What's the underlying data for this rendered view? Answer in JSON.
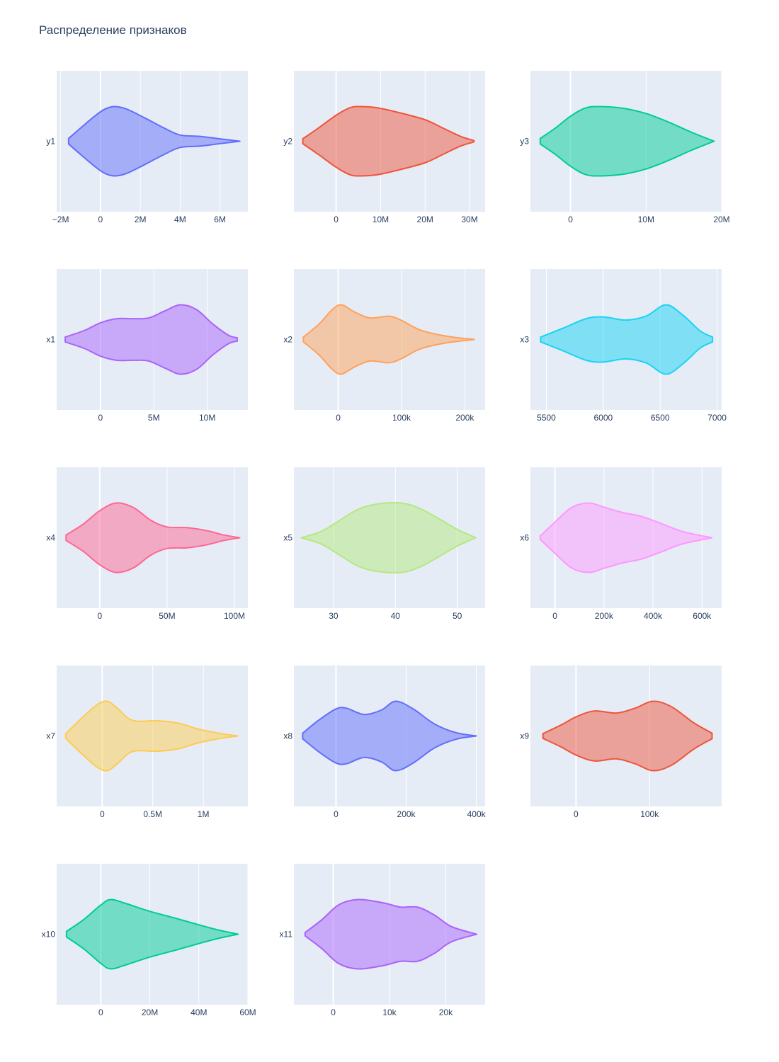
{
  "chart_data": {
    "type": "violin",
    "title": "Распределение признаков",
    "subplots": [
      {
        "label": "y1",
        "color": "#636efa",
        "ticks": [
          {
            "v": -2,
            "t": "−2M"
          },
          {
            "v": 0,
            "t": "0"
          },
          {
            "v": 2,
            "t": "2M"
          },
          {
            "v": 4,
            "t": "4M"
          },
          {
            "v": 6,
            "t": "6M"
          }
        ],
        "xrange": [
          -2.2,
          7.4
        ],
        "profile": [
          [
            -1.6,
            0.08
          ],
          [
            -1.0,
            0.38
          ],
          [
            -0.3,
            0.72
          ],
          [
            0.2,
            0.92
          ],
          [
            0.7,
            1.0
          ],
          [
            1.3,
            0.93
          ],
          [
            2.2,
            0.68
          ],
          [
            3.2,
            0.38
          ],
          [
            4.0,
            0.18
          ],
          [
            5.0,
            0.14
          ],
          [
            6.0,
            0.07
          ],
          [
            7.0,
            0.0
          ]
        ]
      },
      {
        "label": "y2",
        "color": "#EF553B",
        "ticks": [
          {
            "v": 0,
            "t": "0"
          },
          {
            "v": 10,
            "t": "10M"
          },
          {
            "v": 20,
            "t": "20M"
          },
          {
            "v": 30,
            "t": "30M"
          }
        ],
        "xrange": [
          -9.5,
          33.5
        ],
        "profile": [
          [
            -7.5,
            0.07
          ],
          [
            -4,
            0.38
          ],
          [
            0,
            0.75
          ],
          [
            3,
            0.96
          ],
          [
            5,
            1.0
          ],
          [
            9,
            0.97
          ],
          [
            14,
            0.83
          ],
          [
            20,
            0.62
          ],
          [
            24,
            0.38
          ],
          [
            28,
            0.14
          ],
          [
            31,
            0.02
          ]
        ]
      },
      {
        "label": "y3",
        "color": "#00cc96",
        "ticks": [
          {
            "v": 0,
            "t": "0"
          },
          {
            "v": 10,
            "t": "10M"
          },
          {
            "v": 20,
            "t": "20M"
          }
        ],
        "xrange": [
          -5.3,
          20
        ],
        "profile": [
          [
            -4,
            0.08
          ],
          [
            -2,
            0.38
          ],
          [
            0,
            0.72
          ],
          [
            2,
            0.96
          ],
          [
            4,
            1.0
          ],
          [
            7,
            0.95
          ],
          [
            10,
            0.8
          ],
          [
            13,
            0.55
          ],
          [
            16,
            0.26
          ],
          [
            19,
            0.0
          ]
        ]
      },
      {
        "label": "x1",
        "color": "#ab63fa",
        "ticks": [
          {
            "v": 0,
            "t": "0"
          },
          {
            "v": 5,
            "t": "5M"
          },
          {
            "v": 10,
            "t": "10M"
          }
        ],
        "xrange": [
          -4.1,
          13.8
        ],
        "profile": [
          [
            -3.3,
            0.07
          ],
          [
            -1.5,
            0.26
          ],
          [
            0,
            0.48
          ],
          [
            1.5,
            0.6
          ],
          [
            3,
            0.6
          ],
          [
            4.5,
            0.62
          ],
          [
            6,
            0.82
          ],
          [
            7.5,
            1.0
          ],
          [
            9,
            0.86
          ],
          [
            10.5,
            0.45
          ],
          [
            12,
            0.12
          ],
          [
            12.8,
            0.05
          ]
        ]
      },
      {
        "label": "x2",
        "color": "#FFA15A",
        "ticks": [
          {
            "v": 0,
            "t": "0"
          },
          {
            "v": 100,
            "t": "100k"
          },
          {
            "v": 200,
            "t": "200k"
          }
        ],
        "xrange": [
          -70,
          232
        ],
        "profile": [
          [
            -55,
            0.07
          ],
          [
            -30,
            0.45
          ],
          [
            -10,
            0.85
          ],
          [
            5,
            1.0
          ],
          [
            25,
            0.8
          ],
          [
            50,
            0.62
          ],
          [
            80,
            0.67
          ],
          [
            100,
            0.55
          ],
          [
            130,
            0.27
          ],
          [
            170,
            0.1
          ],
          [
            215,
            0.0
          ]
        ]
      },
      {
        "label": "x3",
        "color": "#19d3f3",
        "ticks": [
          {
            "v": 5500,
            "t": "5500"
          },
          {
            "v": 6000,
            "t": "6000"
          },
          {
            "v": 6500,
            "t": "6500"
          },
          {
            "v": 7000,
            "t": "7000"
          }
        ],
        "xrange": [
          5360,
          7040
        ],
        "profile": [
          [
            5450,
            0.07
          ],
          [
            5650,
            0.33
          ],
          [
            5850,
            0.6
          ],
          [
            6000,
            0.65
          ],
          [
            6200,
            0.56
          ],
          [
            6380,
            0.68
          ],
          [
            6550,
            1.0
          ],
          [
            6700,
            0.7
          ],
          [
            6850,
            0.25
          ],
          [
            6960,
            0.07
          ]
        ]
      },
      {
        "label": "x4",
        "color": "#FF6692",
        "ticks": [
          {
            "v": 0,
            "t": "0"
          },
          {
            "v": 50,
            "t": "50M"
          },
          {
            "v": 100,
            "t": "100M"
          }
        ],
        "xrange": [
          -32,
          110
        ],
        "profile": [
          [
            -25,
            0.08
          ],
          [
            -12,
            0.4
          ],
          [
            0,
            0.78
          ],
          [
            12,
            1.0
          ],
          [
            25,
            0.87
          ],
          [
            38,
            0.5
          ],
          [
            50,
            0.31
          ],
          [
            65,
            0.29
          ],
          [
            80,
            0.2
          ],
          [
            92,
            0.08
          ],
          [
            104,
            0.0
          ]
        ]
      },
      {
        "label": "x5",
        "color": "#B6E880",
        "ticks": [
          {
            "v": 30,
            "t": "30"
          },
          {
            "v": 40,
            "t": "40"
          },
          {
            "v": 50,
            "t": "50"
          }
        ],
        "xrange": [
          23.6,
          54.5
        ],
        "profile": [
          [
            24.8,
            0.0
          ],
          [
            28,
            0.18
          ],
          [
            31,
            0.5
          ],
          [
            34,
            0.82
          ],
          [
            37,
            0.97
          ],
          [
            41,
            1.0
          ],
          [
            44,
            0.84
          ],
          [
            47,
            0.55
          ],
          [
            50,
            0.24
          ],
          [
            53,
            0.0
          ]
        ]
      },
      {
        "label": "x6",
        "color": "#FF97FF",
        "ticks": [
          {
            "v": 0,
            "t": "0"
          },
          {
            "v": 200,
            "t": "200k"
          },
          {
            "v": 400,
            "t": "400k"
          },
          {
            "v": 600,
            "t": "600k"
          }
        ],
        "xrange": [
          -100,
          680
        ],
        "profile": [
          [
            -60,
            0.05
          ],
          [
            0,
            0.45
          ],
          [
            70,
            0.88
          ],
          [
            140,
            1.0
          ],
          [
            200,
            0.88
          ],
          [
            280,
            0.72
          ],
          [
            350,
            0.62
          ],
          [
            430,
            0.42
          ],
          [
            520,
            0.18
          ],
          [
            640,
            0.0
          ]
        ]
      },
      {
        "label": "x7",
        "color": "#FECB52",
        "ticks": [
          {
            "v": 0,
            "t": "0"
          },
          {
            "v": 0.5,
            "t": "0.5M"
          },
          {
            "v": 1,
            "t": "1M"
          }
        ],
        "xrange": [
          -0.45,
          1.44
        ],
        "profile": [
          [
            -0.36,
            0.07
          ],
          [
            -0.2,
            0.52
          ],
          [
            -0.05,
            0.9
          ],
          [
            0.05,
            1.0
          ],
          [
            0.15,
            0.8
          ],
          [
            0.3,
            0.45
          ],
          [
            0.55,
            0.44
          ],
          [
            0.75,
            0.37
          ],
          [
            0.95,
            0.2
          ],
          [
            1.15,
            0.08
          ],
          [
            1.34,
            0.0
          ]
        ]
      },
      {
        "label": "x8",
        "color": "#636efa",
        "ticks": [
          {
            "v": 0,
            "t": "0"
          },
          {
            "v": 200,
            "t": "200k"
          },
          {
            "v": 400,
            "t": "400k"
          }
        ],
        "xrange": [
          -120,
          425
        ],
        "profile": [
          [
            -95,
            0.08
          ],
          [
            -50,
            0.45
          ],
          [
            0,
            0.78
          ],
          [
            30,
            0.8
          ],
          [
            80,
            0.62
          ],
          [
            130,
            0.75
          ],
          [
            170,
            1.0
          ],
          [
            220,
            0.78
          ],
          [
            280,
            0.35
          ],
          [
            340,
            0.1
          ],
          [
            400,
            0.0
          ]
        ]
      },
      {
        "label": "x9",
        "color": "#EF553B",
        "ticks": [
          {
            "v": 0,
            "t": "0"
          },
          {
            "v": 100,
            "t": "100k"
          }
        ],
        "xrange": [
          -62,
          198
        ],
        "profile": [
          [
            -45,
            0.07
          ],
          [
            -20,
            0.32
          ],
          [
            0,
            0.55
          ],
          [
            25,
            0.72
          ],
          [
            55,
            0.66
          ],
          [
            80,
            0.8
          ],
          [
            105,
            1.0
          ],
          [
            130,
            0.84
          ],
          [
            160,
            0.38
          ],
          [
            185,
            0.08
          ]
        ]
      },
      {
        "label": "x10",
        "color": "#00cc96",
        "ticks": [
          {
            "v": 0,
            "t": "0"
          },
          {
            "v": 20,
            "t": "20M"
          },
          {
            "v": 40,
            "t": "40M"
          },
          {
            "v": 60,
            "t": "60M"
          }
        ],
        "xrange": [
          -18,
          60
        ],
        "profile": [
          [
            -14,
            0.08
          ],
          [
            -7,
            0.42
          ],
          [
            0,
            0.84
          ],
          [
            4,
            1.0
          ],
          [
            10,
            0.89
          ],
          [
            20,
            0.66
          ],
          [
            30,
            0.47
          ],
          [
            40,
            0.27
          ],
          [
            48,
            0.12
          ],
          [
            56,
            0.0
          ]
        ]
      },
      {
        "label": "x11",
        "color": "#ab63fa",
        "ticks": [
          {
            "v": 0,
            "t": "0"
          },
          {
            "v": 10,
            "t": "10k"
          },
          {
            "v": 20,
            "t": "20k"
          }
        ],
        "xrange": [
          -7,
          27
        ],
        "profile": [
          [
            -5,
            0.05
          ],
          [
            -2,
            0.42
          ],
          [
            1,
            0.85
          ],
          [
            4.5,
            1.0
          ],
          [
            9,
            0.9
          ],
          [
            12,
            0.78
          ],
          [
            15,
            0.78
          ],
          [
            18,
            0.55
          ],
          [
            21,
            0.22
          ],
          [
            25.5,
            0.0
          ]
        ]
      }
    ]
  }
}
